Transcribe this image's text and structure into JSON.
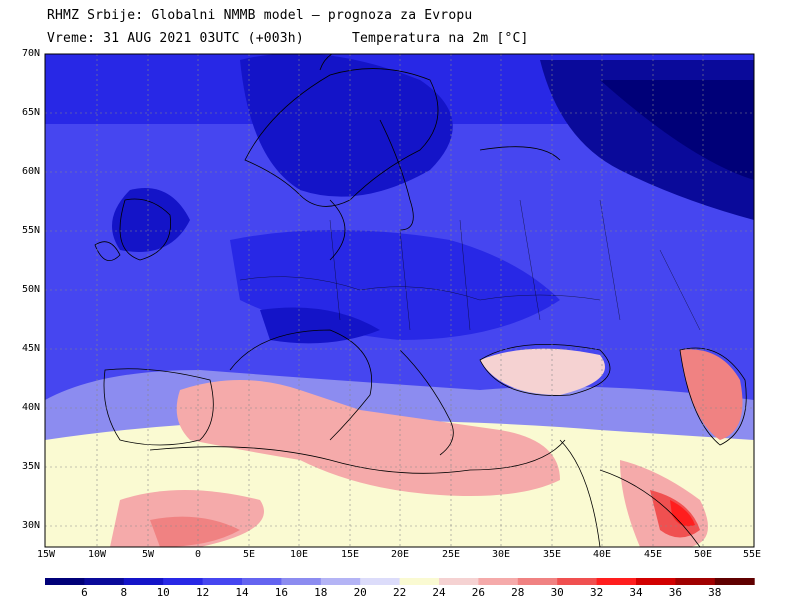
{
  "header": {
    "line1": "RHMZ Srbije: Globalni NMMB model — prognoza za Evropu",
    "line2": "Vreme: 31 AUG 2021 03UTC (+003h)",
    "line3": "Temperatura na 2m [°C]"
  },
  "axes": {
    "lat_labels": [
      "70N",
      "65N",
      "60N",
      "55N",
      "50N",
      "45N",
      "40N",
      "35N",
      "30N"
    ],
    "lon_labels": [
      "15W",
      "10W",
      "5W",
      "0",
      "5E",
      "10E",
      "15E",
      "20E",
      "25E",
      "30E",
      "35E",
      "40E",
      "45E",
      "50E",
      "55E"
    ]
  },
  "colorbar": {
    "labels": [
      "6",
      "8",
      "10",
      "12",
      "14",
      "16",
      "18",
      "20",
      "22",
      "24",
      "26",
      "28",
      "30",
      "32",
      "34",
      "36",
      "38"
    ],
    "colors": [
      "#000078",
      "#0a0a9a",
      "#1414c8",
      "#2828e6",
      "#4646f0",
      "#6464f0",
      "#8c8cf0",
      "#b4b4f5",
      "#dcdcfa",
      "#fafad2",
      "#f5d2d2",
      "#f5aaaa",
      "#f08282",
      "#f05050",
      "#ff1e1e",
      "#d20000",
      "#a00000",
      "#600000"
    ],
    "land_colors": {
      "sea_cool": "#8c8cf0",
      "sea_warm": "#f5aaaa"
    }
  },
  "map": {
    "field": "Temperatura na 2m",
    "lon_range": [
      -15,
      55
    ],
    "lat_range": [
      28,
      70
    ],
    "grid": true,
    "grid_color": "#888888"
  }
}
